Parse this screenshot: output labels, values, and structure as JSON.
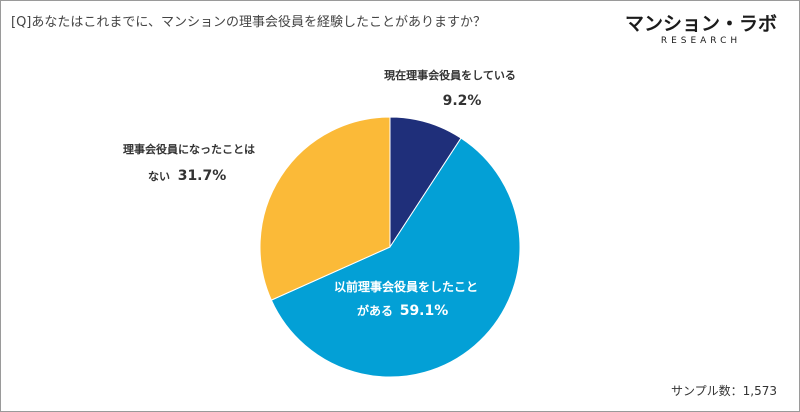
{
  "question": "[Q]あなたはこれまでに、マンションの理事会役員を経験したことがありますか？",
  "logo": {
    "main": "マンション・ラボ",
    "sub": "RESEARCH"
  },
  "footer": "サンプル数：1,573",
  "chart_data": {
    "type": "pie",
    "slices": [
      {
        "label_lines": [
          "現在理事会役員をしている"
        ],
        "value_text": "9.2%",
        "value": 9.2,
        "color": "#1f2f7a",
        "text_color": "#333333"
      },
      {
        "label_lines": [
          "以前理事会役員をしたこと",
          "がある"
        ],
        "value_text": "59.1%",
        "value": 59.1,
        "color": "#03a0d6",
        "text_color": "#ffffff"
      },
      {
        "label_lines": [
          "理事会役員になったことは",
          "ない"
        ],
        "value_text": "31.7%",
        "value": 31.7,
        "color": "#fbba38",
        "text_color": "#333333"
      }
    ]
  }
}
